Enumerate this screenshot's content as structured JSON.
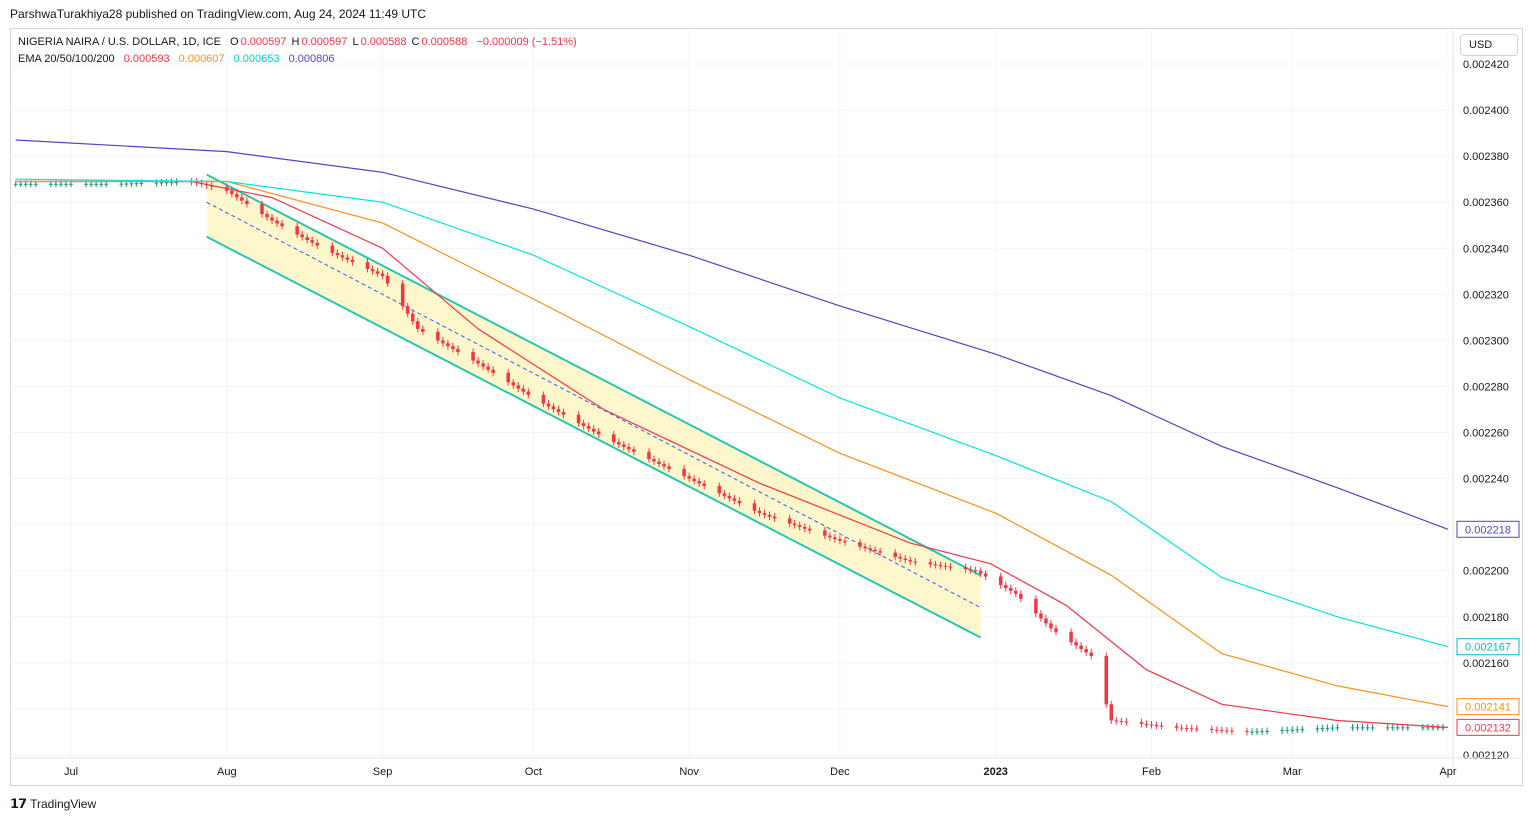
{
  "header": {
    "publisher": "ParshwaTurakhiya28 published on TradingView.com, Aug 24, 2024 11:49 UTC"
  },
  "legend": {
    "symbol": "NIGERIA NAIRA / U.S. DOLLAR, 1D, ICE",
    "open_label": "O",
    "open": "0.000597",
    "high_label": "H",
    "high": "0.000597",
    "low_label": "L",
    "low": "0.000588",
    "close_label": "C",
    "close": "0.000588",
    "change": "−0.000009 (−1.51%)",
    "ema_label": "EMA 20/50/100/200",
    "ema20": "0.000593",
    "ema50": "0.000607",
    "ema100": "0.000653",
    "ema200": "0.000806"
  },
  "currency_button": "USD",
  "footer": {
    "brand": "TradingView"
  },
  "colors": {
    "up": "#089981",
    "down": "#f23645",
    "ema20": "#f23645",
    "ema50": "#f7931a",
    "ema100": "#00e5e0",
    "ema200": "#4a47c4",
    "channel": "#26c6b4",
    "channel_fill": "#fff7cc",
    "midline": "#2962ff"
  },
  "chart_data": {
    "type": "candlestick",
    "x_ticks": [
      "Jul",
      "Aug",
      "Sep",
      "Oct",
      "Nov",
      "Dec",
      "2023",
      "Feb",
      "Mar",
      "Apr"
    ],
    "y_ticks": [
      "0.002420",
      "0.002400",
      "0.002380",
      "0.002360",
      "0.002340",
      "0.002320",
      "0.002300",
      "0.002280",
      "0.002260",
      "0.002240",
      "0.002220",
      "0.002200",
      "0.002180",
      "0.002160",
      "0.002140",
      "0.002120"
    ],
    "ylim": [
      0.00212,
      0.00243
    ],
    "x_start": "2022-06-20",
    "x_end": "2023-04-01",
    "series_close": [
      [
        "2022-06-20",
        0.002368
      ],
      [
        "2022-07-10",
        0.002368
      ],
      [
        "2022-07-25",
        0.002369
      ],
      [
        "2022-08-01",
        0.002365
      ],
      [
        "2022-08-10",
        0.002352
      ],
      [
        "2022-08-20",
        0.00234
      ],
      [
        "2022-09-01",
        0.002328
      ],
      [
        "2022-09-08",
        0.002305
      ],
      [
        "2022-09-20",
        0.00229
      ],
      [
        "2022-10-01",
        0.002275
      ],
      [
        "2022-10-15",
        0.002258
      ],
      [
        "2022-11-01",
        0.00224
      ],
      [
        "2022-11-15",
        0.002225
      ],
      [
        "2022-12-01",
        0.002213
      ],
      [
        "2022-12-15",
        0.002204
      ],
      [
        "2022-12-28",
        0.0022
      ],
      [
        "2023-01-05",
        0.00219
      ],
      [
        "2023-01-12",
        0.002175
      ],
      [
        "2023-01-20",
        0.002163
      ],
      [
        "2023-01-24",
        0.002135
      ],
      [
        "2023-02-05",
        0.002132
      ],
      [
        "2023-02-20",
        0.00213
      ],
      [
        "2023-03-10",
        0.002132
      ],
      [
        "2023-04-01",
        0.002132
      ]
    ],
    "ema20": [
      [
        "2022-06-20",
        0.002369
      ],
      [
        "2022-07-25",
        0.002369
      ],
      [
        "2022-08-10",
        0.002362
      ],
      [
        "2022-09-01",
        0.00234
      ],
      [
        "2022-09-20",
        0.002305
      ],
      [
        "2022-10-15",
        0.00227
      ],
      [
        "2022-11-15",
        0.002238
      ],
      [
        "2022-12-15",
        0.002212
      ],
      [
        "2022-12-31",
        0.002203
      ],
      [
        "2023-01-15",
        0.002185
      ],
      [
        "2023-01-31",
        0.002157
      ],
      [
        "2023-02-15",
        0.002142
      ],
      [
        "2023-03-10",
        0.002135
      ],
      [
        "2023-04-01",
        0.002132
      ]
    ],
    "ema50": [
      [
        "2022-06-20",
        0.002369
      ],
      [
        "2022-08-01",
        0.002369
      ],
      [
        "2022-09-01",
        0.002351
      ],
      [
        "2022-10-01",
        0.002318
      ],
      [
        "2022-11-01",
        0.002283
      ],
      [
        "2022-12-01",
        0.002251
      ],
      [
        "2023-01-01",
        0.002225
      ],
      [
        "2023-01-24",
        0.002198
      ],
      [
        "2023-02-15",
        0.002164
      ],
      [
        "2023-03-10",
        0.00215
      ],
      [
        "2023-04-01",
        0.002141
      ]
    ],
    "ema100": [
      [
        "2022-06-20",
        0.00237
      ],
      [
        "2022-08-01",
        0.002369
      ],
      [
        "2022-09-01",
        0.00236
      ],
      [
        "2022-10-01",
        0.002337
      ],
      [
        "2022-11-01",
        0.002306
      ],
      [
        "2022-12-01",
        0.002275
      ],
      [
        "2023-01-01",
        0.00225
      ],
      [
        "2023-01-24",
        0.00223
      ],
      [
        "2023-02-15",
        0.002197
      ],
      [
        "2023-03-10",
        0.00218
      ],
      [
        "2023-04-01",
        0.002167
      ]
    ],
    "ema200": [
      [
        "2022-06-20",
        0.002387
      ],
      [
        "2022-08-01",
        0.002382
      ],
      [
        "2022-09-01",
        0.002373
      ],
      [
        "2022-10-01",
        0.002357
      ],
      [
        "2022-11-01",
        0.002337
      ],
      [
        "2022-12-01",
        0.002315
      ],
      [
        "2023-01-01",
        0.002294
      ],
      [
        "2023-01-24",
        0.002276
      ],
      [
        "2023-02-15",
        0.002254
      ],
      [
        "2023-03-10",
        0.002236
      ],
      [
        "2023-04-01",
        0.002218
      ]
    ],
    "price_labels": [
      {
        "value": "0.002218",
        "color": "#4a47c4",
        "y": 0.002218
      },
      {
        "value": "0.002167",
        "color": "#00bcd4",
        "y": 0.002167
      },
      {
        "value": "0.002141",
        "color": "#f7931a",
        "y": 0.002141
      },
      {
        "value": "0.002132",
        "color": "#f23645",
        "y": 0.002132
      }
    ],
    "channel": {
      "upper": [
        [
          "2022-07-28",
          0.002372
        ],
        [
          "2022-12-29",
          0.002198
        ]
      ],
      "lower": [
        [
          "2022-07-28",
          0.002345
        ],
        [
          "2022-12-29",
          0.002171
        ]
      ],
      "mid": [
        [
          "2022-07-28",
          0.00236
        ],
        [
          "2022-12-29",
          0.002184
        ]
      ]
    }
  }
}
